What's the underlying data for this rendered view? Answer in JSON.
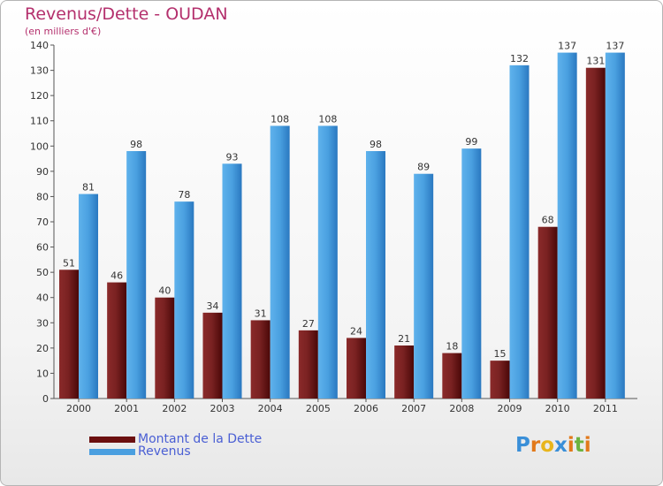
{
  "title": "Revenus/Dette - OUDAN",
  "subtitle": "(en milliers d'€)",
  "chart_data": {
    "type": "bar",
    "categories": [
      "2000",
      "2001",
      "2002",
      "2003",
      "2004",
      "2005",
      "2006",
      "2007",
      "2008",
      "2009",
      "2010",
      "2011"
    ],
    "series": [
      {
        "name": "Montant de la Dette",
        "values": [
          51,
          46,
          40,
          34,
          31,
          27,
          24,
          21,
          18,
          15,
          68,
          131
        ],
        "color": "#7a1c1c"
      },
      {
        "name": "Revenus",
        "values": [
          81,
          98,
          78,
          93,
          108,
          108,
          98,
          89,
          99,
          132,
          137,
          137
        ],
        "color": "#4a9fe0"
      }
    ],
    "ylim": [
      0,
      140
    ],
    "yticks": [
      0,
      10,
      20,
      30,
      40,
      50,
      60,
      70,
      80,
      90,
      100,
      110,
      120,
      130,
      140
    ],
    "grid": false,
    "legend_position": "bottom-left"
  },
  "legend": [
    {
      "label": "Montant de la Dette",
      "color": "#6b0f0f"
    },
    {
      "label": "Revenus",
      "color": "#4a9fe0"
    }
  ],
  "logo": {
    "letters": [
      "P",
      "r",
      "o",
      "x",
      "i",
      "t",
      "i"
    ],
    "colors": [
      "#3a8fd8",
      "#e2791a",
      "#e8b51c",
      "#3a8fd8",
      "#e2791a",
      "#6cb33f",
      "#e2791a"
    ]
  }
}
